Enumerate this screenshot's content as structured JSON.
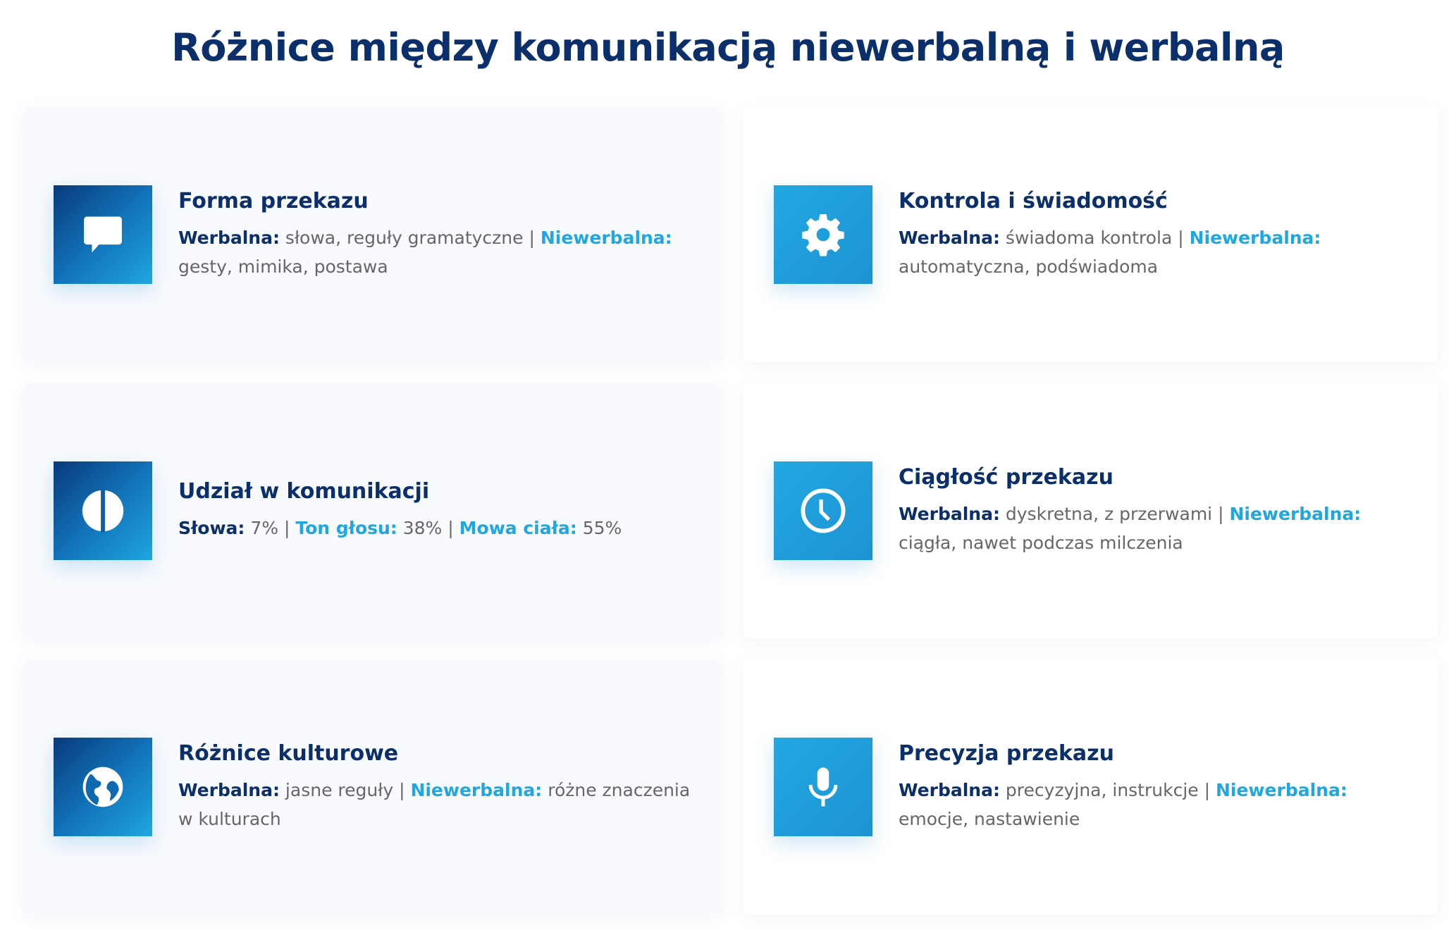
{
  "title": "Różnice między komunikacją niewerbalną i werbalną",
  "colors": {
    "navy": "#0b2f6b",
    "accent": "#1ea7e1",
    "text": "#666666"
  },
  "cards": [
    {
      "icon": "speech-bubble-icon",
      "heading": "Forma przekazu",
      "segments": [
        {
          "t": "Werbalna:",
          "s": "navy"
        },
        {
          "t": " słowa, reguły gramatyczne | ",
          "s": "gray"
        },
        {
          "t": "Niewerbalna:",
          "s": "blue"
        },
        {
          "t": " gesty, mimika, postawa",
          "s": "gray"
        }
      ]
    },
    {
      "icon": "gear-icon",
      "heading": "Kontrola i świadomość",
      "segments": [
        {
          "t": "Werbalna:",
          "s": "navy"
        },
        {
          "t": " świadoma kontrola | ",
          "s": "gray"
        },
        {
          "t": "Niewerbalna:",
          "s": "blue"
        },
        {
          "t": " automatyczna, podświadoma",
          "s": "gray"
        }
      ]
    },
    {
      "icon": "half-circle-icon",
      "heading": "Udział w komunikacji",
      "segments": [
        {
          "t": "Słowa:",
          "s": "navy"
        },
        {
          "t": " 7% | ",
          "s": "gray"
        },
        {
          "t": "Ton głosu:",
          "s": "blue"
        },
        {
          "t": " 38% | ",
          "s": "gray"
        },
        {
          "t": "Mowa ciała:",
          "s": "blue"
        },
        {
          "t": " 55%",
          "s": "gray"
        }
      ]
    },
    {
      "icon": "clock-icon",
      "heading": "Ciągłość przekazu",
      "segments": [
        {
          "t": "Werbalna:",
          "s": "navy"
        },
        {
          "t": " dyskretna, z przerwami | ",
          "s": "gray"
        },
        {
          "t": "Niewerbalna:",
          "s": "blue"
        },
        {
          "t": " ciągła, nawet podczas milczenia",
          "s": "gray"
        }
      ]
    },
    {
      "icon": "globe-icon",
      "heading": "Różnice kulturowe",
      "segments": [
        {
          "t": "Werbalna:",
          "s": "navy"
        },
        {
          "t": " jasne reguły | ",
          "s": "gray"
        },
        {
          "t": "Niewerbalna:",
          "s": "blue"
        },
        {
          "t": " różne znaczenia w kulturach",
          "s": "gray"
        }
      ]
    },
    {
      "icon": "microphone-icon",
      "heading": "Precyzja przekazu",
      "segments": [
        {
          "t": "Werbalna:",
          "s": "navy"
        },
        {
          "t": " precyzyjna, instrukcje | ",
          "s": "gray"
        },
        {
          "t": "Niewerbalna:",
          "s": "blue"
        },
        {
          "t": " emocje, nastawienie",
          "s": "gray"
        }
      ]
    }
  ]
}
